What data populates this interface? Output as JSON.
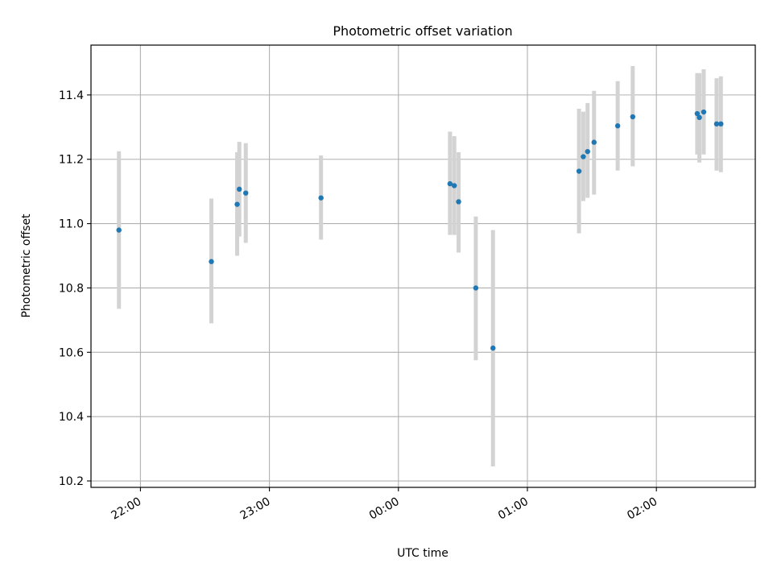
{
  "chart_data": {
    "type": "scatter",
    "title": "Photometric offset variation",
    "xlabel": "UTC time",
    "ylabel": "Photometric offset",
    "x_ticks": [
      "22:00",
      "23:00",
      "00:00",
      "01:00",
      "02:00"
    ],
    "x_tick_hours": [
      22,
      23,
      24,
      25,
      26
    ],
    "xlim_hours": [
      21.6167,
      26.7667
    ],
    "ylim": [
      10.18,
      11.555
    ],
    "y_ticks": [
      10.2,
      10.4,
      10.6,
      10.8,
      11.0,
      11.2,
      11.4
    ],
    "grid": true,
    "legend": "none",
    "colors": {
      "point": "#1f77b4",
      "errorbar": "#d3d3d3",
      "grid": "#b0b0b0"
    },
    "points": [
      {
        "t": "21:50",
        "y": 10.98,
        "lo": 10.735,
        "hi": 11.225
      },
      {
        "t": "22:33",
        "y": 10.882,
        "lo": 10.69,
        "hi": 11.078
      },
      {
        "t": "22:45",
        "y": 11.06,
        "lo": 10.9,
        "hi": 11.222
      },
      {
        "t": "22:46",
        "y": 11.107,
        "lo": 10.96,
        "hi": 11.254
      },
      {
        "t": "22:49",
        "y": 11.095,
        "lo": 10.94,
        "hi": 11.25
      },
      {
        "t": "23:24",
        "y": 11.08,
        "lo": 10.95,
        "hi": 11.212
      },
      {
        "t": "00:24",
        "y": 11.124,
        "lo": 10.965,
        "hi": 11.286
      },
      {
        "t": "00:26",
        "y": 11.118,
        "lo": 10.965,
        "hi": 11.272
      },
      {
        "t": "00:28",
        "y": 11.068,
        "lo": 10.91,
        "hi": 11.222
      },
      {
        "t": "00:36",
        "y": 10.8,
        "lo": 10.575,
        "hi": 11.022
      },
      {
        "t": "00:44",
        "y": 10.613,
        "lo": 10.245,
        "hi": 10.98
      },
      {
        "t": "01:24",
        "y": 11.163,
        "lo": 10.97,
        "hi": 11.357
      },
      {
        "t": "01:26",
        "y": 11.208,
        "lo": 11.07,
        "hi": 11.348
      },
      {
        "t": "01:28",
        "y": 11.224,
        "lo": 11.08,
        "hi": 11.375
      },
      {
        "t": "01:31",
        "y": 11.253,
        "lo": 11.09,
        "hi": 11.413
      },
      {
        "t": "01:42",
        "y": 11.304,
        "lo": 11.165,
        "hi": 11.443
      },
      {
        "t": "01:49",
        "y": 11.332,
        "lo": 11.178,
        "hi": 11.49
      },
      {
        "t": "02:19",
        "y": 11.342,
        "lo": 11.215,
        "hi": 11.468
      },
      {
        "t": "02:20",
        "y": 11.33,
        "lo": 11.19,
        "hi": 11.468
      },
      {
        "t": "02:22",
        "y": 11.347,
        "lo": 11.215,
        "hi": 11.48
      },
      {
        "t": "02:28",
        "y": 11.31,
        "lo": 11.165,
        "hi": 11.452
      },
      {
        "t": "02:30",
        "y": 11.31,
        "lo": 11.16,
        "hi": 11.458
      }
    ]
  }
}
